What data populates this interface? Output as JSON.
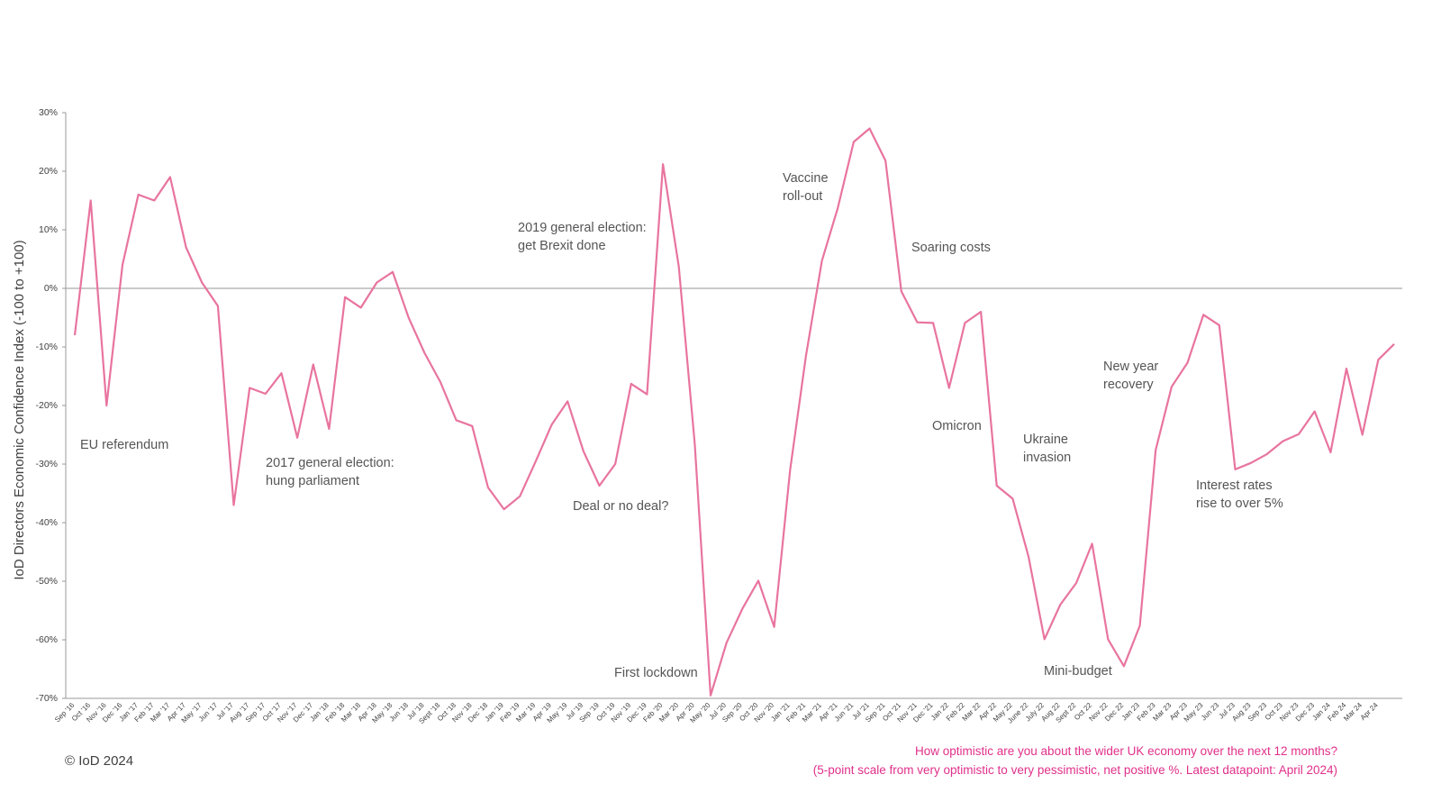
{
  "chart_data": {
    "type": "line",
    "y_label": "IoD Directors Economic Confidence Index (-100 to +100)",
    "categories": [
      "Sep '16",
      "Oct '16",
      "Nov '16",
      "Dec '16",
      "Jan '17",
      "Feb '17",
      "Mar '17",
      "Apr '17",
      "May '17",
      "Jun '17",
      "Jul '17",
      "Aug '17",
      "Sep '17",
      "Oct '17",
      "Nov '17",
      "Dec '17",
      "Jan '18",
      "Feb '18",
      "Mar '18",
      "Apr '18",
      "May '18",
      "Jun '18",
      "Jul '18",
      "Sept '18",
      "Oct '18",
      "Nov '18",
      "Dec '18",
      "Jan '19",
      "Feb '19",
      "Mar '19",
      "Apr '19",
      "May '19",
      "Jul '19",
      "Sep '19",
      "Oct '19",
      "Nov '19",
      "Dec '19",
      "Feb '20",
      "Mar '20",
      "Apr '20",
      "May '20",
      "Jul '20",
      "Sep '20",
      "Oct '20",
      "Nov '20",
      "Jan '21",
      "Feb '21",
      "Mar '21",
      "Apr '21",
      "Jun '21",
      "Jul '21",
      "Sep '21",
      "Oct '21",
      "Nov '21",
      "Dec '21",
      "Jan 22",
      "Feb 22",
      "Mar 22",
      "Apr 22",
      "May 22",
      "June 22",
      "July 22",
      "Aug 22",
      "Sept 22",
      "Oct 22",
      "Nov 22",
      "Dec 22",
      "Jan 23",
      "Feb 23",
      "Mar 23",
      "Apr 23",
      "May 23",
      "Jun 23",
      "Jul 23",
      "Aug 23",
      "Sep 23",
      "Oct 23",
      "Nov 23",
      "Dec 23",
      "Jan 24",
      "Feb 24",
      "Mar 24",
      "Apr 24",
      null
    ],
    "series": [
      {
        "name": "Economic confidence",
        "color": "#e8749f",
        "values": [
          -8,
          15,
          -20,
          4,
          16,
          15,
          19,
          7,
          1,
          -3,
          -37,
          -17,
          -18,
          -14.5,
          -25.5,
          -13,
          -24,
          -1.5,
          -3.3,
          1,
          2.8,
          -5,
          -11,
          -16,
          -22.5,
          -23.5,
          -34,
          -37.7,
          -35.5,
          -29.5,
          -23.3,
          -19.3,
          -27.8,
          -33.7,
          -30,
          -16.3,
          -18.1,
          21.2,
          3.7,
          -26.5,
          -69.5,
          -60.5,
          -54.7,
          -49.9,
          -57.8,
          -31,
          -11.5,
          4.7,
          13.7,
          25,
          27.3,
          21.8,
          -0.5,
          -5.8,
          -5.9,
          -17,
          -5.9,
          -4,
          -33.7,
          -35.9,
          -45.8,
          -59.9,
          -54,
          -50.3,
          -43.6,
          -59.9,
          -64.5,
          -57.6,
          -27.6,
          -16.8,
          -12.7,
          -4.5,
          -6.3,
          -30.9,
          -29.8,
          -28.3,
          -26.1,
          -24.9,
          -21,
          -28,
          -13.7,
          -25,
          -12.2,
          -9.5
        ]
      }
    ],
    "ylim": [
      -70,
      30
    ],
    "yticks": [
      {
        "value": -70,
        "label": "-70%"
      },
      {
        "value": -60,
        "label": "-60%"
      },
      {
        "value": -50,
        "label": "-50%"
      },
      {
        "value": -40,
        "label": "-40%"
      },
      {
        "value": -30,
        "label": "-30%"
      },
      {
        "value": -20,
        "label": "-20%"
      },
      {
        "value": -10,
        "label": "-10%"
      },
      {
        "value": 0,
        "label": "0%"
      },
      {
        "value": 10,
        "label": "10%"
      },
      {
        "value": 20,
        "label": "20%"
      },
      {
        "value": 30,
        "label": "30%"
      }
    ],
    "annotations": [
      [
        "EU referendum"
      ],
      [
        "2017 general election:",
        "hung parliament"
      ],
      [
        "2019 general election:",
        "get Brexit done"
      ],
      [
        "Deal or no deal?"
      ],
      [
        "First lockdown"
      ],
      [
        "Vaccine",
        "roll-out"
      ],
      [
        "Soaring costs"
      ],
      [
        "Omicron"
      ],
      [
        "Ukraine",
        "invasion"
      ],
      [
        "Mini-budget"
      ],
      [
        "New year",
        "recovery"
      ],
      [
        "Interest rates",
        "rise to over 5%"
      ]
    ],
    "source": "© IoD 2024",
    "note": [
      "How optimistic are you about the wider UK economy over the next 12 months?",
      "(5-point scale from very optimistic to very pessimistic, net positive %. Latest datapoint: April 2024)"
    ]
  }
}
